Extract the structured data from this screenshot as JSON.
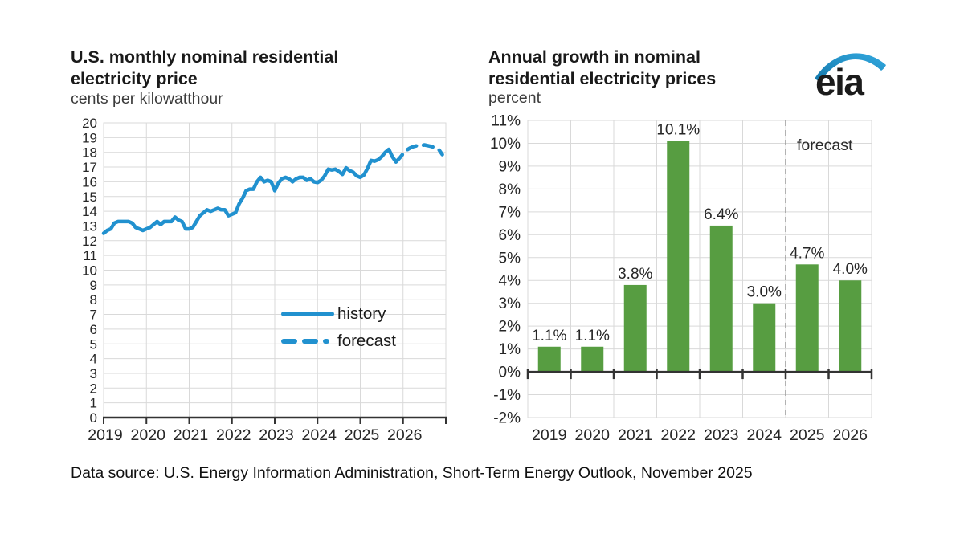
{
  "header": {
    "left_title": "U.S. monthly nominal residential electricity price",
    "left_subtitle": "cents per kilowatthour",
    "right_title": "Annual growth in nominal residential electricity prices",
    "right_subtitle": "percent",
    "logo_text": "eia"
  },
  "legend": {
    "history_label": "history",
    "forecast_label": "forecast"
  },
  "source": "Data source: U.S. Energy Information Administration, Short-Term Energy Outlook, November 2025",
  "colors": {
    "line_blue": "#2191cf",
    "bar_green": "#579d41",
    "grid": "#d9d9d9",
    "axis": "#333333",
    "divider": "#999999",
    "label_text": "#1a1a1a"
  },
  "chart_data": [
    {
      "type": "line",
      "title": "U.S. monthly nominal residential electricity price",
      "ylabel": "cents per kilowatthour",
      "x_range": [
        "2019-01",
        "2026-12"
      ],
      "categories": [
        "2019",
        "2020",
        "2021",
        "2022",
        "2023",
        "2024",
        "2025",
        "2026"
      ],
      "ylim": [
        0,
        20
      ],
      "ytick_step": 1,
      "ytick_labels": [
        "0",
        "1",
        "2",
        "3",
        "4",
        "5",
        "6",
        "7",
        "8",
        "9",
        "10",
        "11",
        "12",
        "13",
        "14",
        "15",
        "16",
        "17",
        "18",
        "19",
        "20"
      ],
      "grid": true,
      "legend_position": "inside-lower-right",
      "series": [
        {
          "name": "history",
          "style": "solid",
          "start_month_index": 0,
          "values": [
            12.5,
            12.7,
            12.8,
            13.2,
            13.3,
            13.3,
            13.3,
            13.3,
            13.2,
            12.9,
            12.8,
            12.7,
            12.8,
            12.9,
            13.1,
            13.3,
            13.1,
            13.3,
            13.3,
            13.3,
            13.6,
            13.4,
            13.3,
            12.8,
            12.8,
            12.9,
            13.3,
            13.7,
            13.9,
            14.1,
            14.0,
            14.1,
            14.2,
            14.1,
            14.1,
            13.7,
            13.8,
            13.9,
            14.5,
            14.9,
            15.4,
            15.5,
            15.5,
            16.0,
            16.3,
            16.0,
            16.1,
            16.0,
            15.4,
            15.9,
            16.2,
            16.3,
            16.2,
            16.0,
            16.2,
            16.3,
            16.3,
            16.1,
            16.2,
            16.0,
            15.95,
            16.1,
            16.4,
            16.85,
            16.8,
            16.85,
            16.7,
            16.5,
            16.95,
            16.75,
            16.65,
            16.4,
            16.3,
            16.45,
            16.9,
            17.45,
            17.4,
            17.5,
            17.7,
            18.0,
            18.2,
            17.7,
            17.35
          ]
        },
        {
          "name": "forecast",
          "style": "dashed",
          "start_month_index": 82,
          "values": [
            17.35,
            17.6,
            17.9,
            18.15,
            18.3,
            18.4,
            18.45,
            18.45,
            18.5,
            18.45,
            18.4,
            18.3,
            18.2,
            17.85
          ]
        }
      ]
    },
    {
      "type": "bar",
      "title": "Annual growth in nominal residential electricity prices",
      "ylabel": "percent",
      "categories": [
        "2019",
        "2020",
        "2021",
        "2022",
        "2023",
        "2024",
        "2025",
        "2026"
      ],
      "values": [
        1.1,
        1.1,
        3.8,
        10.1,
        6.4,
        3.0,
        4.7,
        4.0
      ],
      "bar_labels": [
        "1.1%",
        "1.1%",
        "3.8%",
        "10.1%",
        "6.4%",
        "3.0%",
        "4.7%",
        "4.0%"
      ],
      "ylim": [
        -2,
        11
      ],
      "ytick_step": 1,
      "ytick_labels": [
        "-2%",
        "-1%",
        "0%",
        "1%",
        "2%",
        "3%",
        "4%",
        "5%",
        "6%",
        "7%",
        "8%",
        "9%",
        "10%",
        "11%"
      ],
      "grid": true,
      "annotation": "forecast",
      "forecast_start_category": "2025"
    }
  ]
}
